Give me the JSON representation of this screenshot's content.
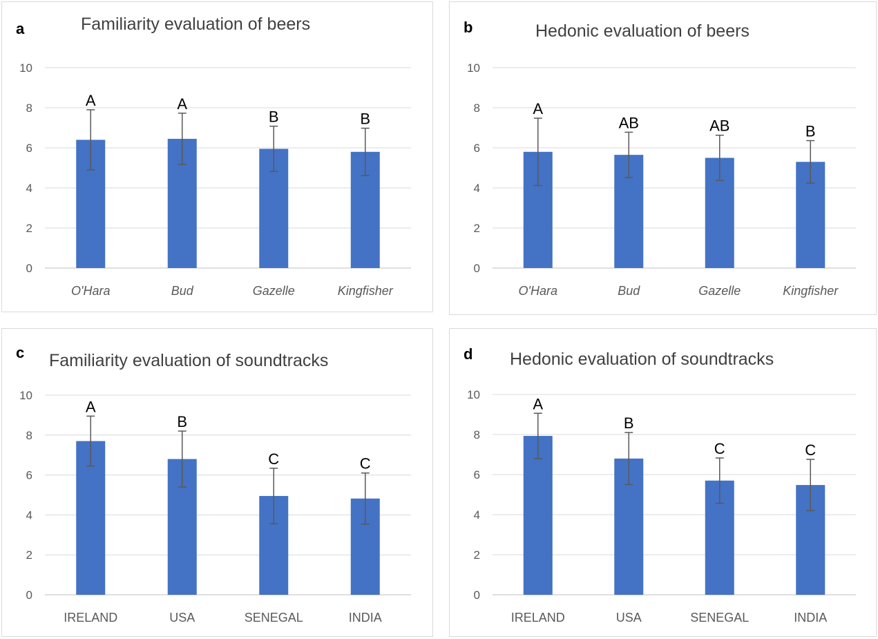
{
  "chart_data": [
    {
      "panel_label": "a",
      "type": "bar",
      "title": "Familiarity evaluation of beers",
      "categories": [
        "O'Hara",
        "Bud",
        "Gazelle",
        "Kingfisher"
      ],
      "category_style": "italic",
      "values": [
        6.4,
        6.45,
        5.95,
        5.8
      ],
      "error": [
        1.5,
        1.28,
        1.13,
        1.18
      ],
      "significance": [
        "A",
        "A",
        "B",
        "B"
      ],
      "yticks": [
        "0",
        "2",
        "4",
        "6",
        "8",
        "10"
      ],
      "ylim": [
        0,
        10
      ],
      "grid": true,
      "color": "#4472c4"
    },
    {
      "panel_label": "b",
      "type": "bar",
      "title": "Hedonic evaluation of beers",
      "categories": [
        "O'Hara",
        "Bud",
        "Gazelle",
        "Kingfisher"
      ],
      "category_style": "italic",
      "values": [
        5.8,
        5.65,
        5.5,
        5.3
      ],
      "error": [
        1.68,
        1.13,
        1.13,
        1.06
      ],
      "significance": [
        "A",
        "AB",
        "AB",
        "B"
      ],
      "yticks": [
        "0",
        "2",
        "4",
        "6",
        "8",
        "10"
      ],
      "ylim": [
        0,
        10
      ],
      "grid": true,
      "color": "#4472c4"
    },
    {
      "panel_label": "c",
      "type": "bar",
      "title": "Familiarity evaluation of soundtracks",
      "categories": [
        "IRELAND",
        "USA",
        "SENEGAL",
        "INDIA"
      ],
      "category_style": "normal",
      "values": [
        7.7,
        6.8,
        4.95,
        4.82
      ],
      "error": [
        1.25,
        1.4,
        1.39,
        1.28
      ],
      "significance": [
        "A",
        "B",
        "C",
        "C"
      ],
      "yticks": [
        "0",
        "2",
        "4",
        "6",
        "8",
        "10"
      ],
      "ylim": [
        0,
        10
      ],
      "grid": true,
      "color": "#4472c4"
    },
    {
      "panel_label": "d",
      "type": "bar",
      "title": "Hedonic evaluation of soundtracks",
      "categories": [
        "IRELAND",
        "USA",
        "SENEGAL",
        "INDIA"
      ],
      "category_style": "normal",
      "values": [
        7.93,
        6.8,
        5.7,
        5.48
      ],
      "error": [
        1.13,
        1.3,
        1.13,
        1.28
      ],
      "significance": [
        "A",
        "B",
        "C",
        "C"
      ],
      "yticks": [
        "0",
        "2",
        "4",
        "6",
        "8",
        "10"
      ],
      "ylim": [
        0,
        10
      ],
      "grid": true,
      "color": "#4472c4"
    }
  ]
}
